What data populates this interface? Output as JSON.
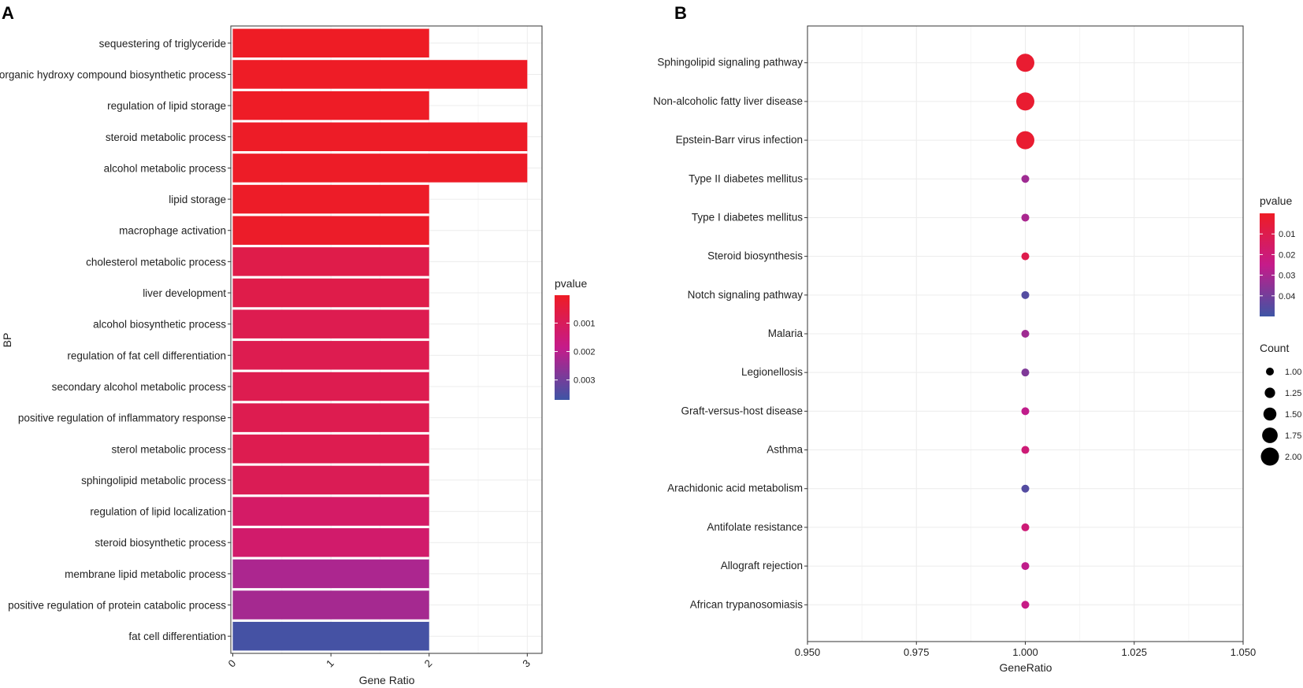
{
  "panels": {
    "a_label": "A",
    "b_label": "B"
  },
  "colors": {
    "high": "#ee1c25",
    "mid": "#c51b8a",
    "low": "#3e55a5",
    "grid": "#ececec",
    "panel_border": "#333333"
  },
  "chart_data": [
    {
      "type": "bar",
      "orientation": "horizontal",
      "categories": [
        "sequestering of triglyceride",
        "organic hydroxy compound biosynthetic process",
        "regulation of lipid storage",
        "steroid metabolic process",
        "alcohol metabolic process",
        "lipid storage",
        "macrophage activation",
        "cholesterol metabolic process",
        "liver development",
        "alcohol biosynthetic process",
        "regulation of fat cell differentiation",
        "secondary alcohol metabolic process",
        "positive regulation of inflammatory response",
        "sterol metabolic process",
        "sphingolipid metabolic process",
        "regulation of lipid localization",
        "steroid biosynthetic process",
        "membrane lipid metabolic process",
        "positive regulation of protein catabolic process",
        "fat cell differentiation"
      ],
      "values": [
        2,
        3,
        2,
        3,
        3,
        2,
        2,
        2,
        2,
        2,
        2,
        2,
        2,
        2,
        2,
        2,
        2,
        2,
        2,
        2
      ],
      "pvalues": [
        2e-05,
        3e-05,
        4e-05,
        5e-05,
        6e-05,
        8e-05,
        0.0001,
        0.0007,
        0.0007,
        0.0008,
        0.0008,
        0.0008,
        0.0008,
        0.0008,
        0.0009,
        0.0012,
        0.0013,
        0.0022,
        0.0023,
        0.0036
      ],
      "xlabel": "Gene Ratio",
      "ylabel": "BP",
      "xticks": [
        "0",
        "1",
        "2",
        "3"
      ],
      "xlim": [
        -0.02,
        3.15
      ],
      "legend": {
        "title": "pvalue",
        "labels": [
          "0.001",
          "0.002",
          "0.003"
        ],
        "values": [
          0.001,
          0.002,
          0.003
        ],
        "range": [
          2e-05,
          0.0037
        ],
        "position": "right"
      }
    },
    {
      "type": "scatter",
      "categories": [
        "Sphingolipid signaling pathway",
        "Non-alcoholic fatty liver disease",
        "Epstein-Barr virus infection",
        "Type II diabetes mellitus",
        "Type I diabetes mellitus",
        "Steroid biosynthesis",
        "Notch signaling pathway",
        "Malaria",
        "Legionellosis",
        "Graft-versus-host disease",
        "Asthma",
        "Arachidonic acid metabolism",
        "Antifolate resistance",
        "Allograft rejection",
        "African trypanosomiasis"
      ],
      "x": [
        1,
        1,
        1,
        1,
        1,
        1,
        1,
        1,
        1,
        1,
        1,
        1,
        1,
        1,
        1
      ],
      "counts": [
        2,
        2,
        2,
        1,
        1,
        1,
        1,
        1,
        1,
        1,
        1,
        1,
        1,
        1,
        1
      ],
      "pvalues": [
        0.003,
        0.003,
        0.003,
        0.032,
        0.03,
        0.01,
        0.046,
        0.032,
        0.038,
        0.026,
        0.02,
        0.046,
        0.02,
        0.026,
        0.024
      ],
      "xlabel": "GeneRatio",
      "xticks": [
        "0.950",
        "0.975",
        "1.000",
        "1.025",
        "1.050"
      ],
      "xtick_values": [
        0.95,
        0.975,
        1.0,
        1.025,
        1.05
      ],
      "xlim": [
        0.95,
        1.05
      ],
      "legend": {
        "color_title": "pvalue",
        "color_labels": [
          "0.01",
          "0.02",
          "0.03",
          "0.04"
        ],
        "color_values": [
          0.01,
          0.02,
          0.03,
          0.04
        ],
        "color_range": [
          0.0,
          0.05
        ],
        "size_title": "Count",
        "size_labels": [
          "1.00",
          "1.25",
          "1.50",
          "1.75",
          "2.00"
        ],
        "size_values": [
          1.0,
          1.25,
          1.5,
          1.75,
          2.0
        ],
        "position": "right"
      }
    }
  ]
}
